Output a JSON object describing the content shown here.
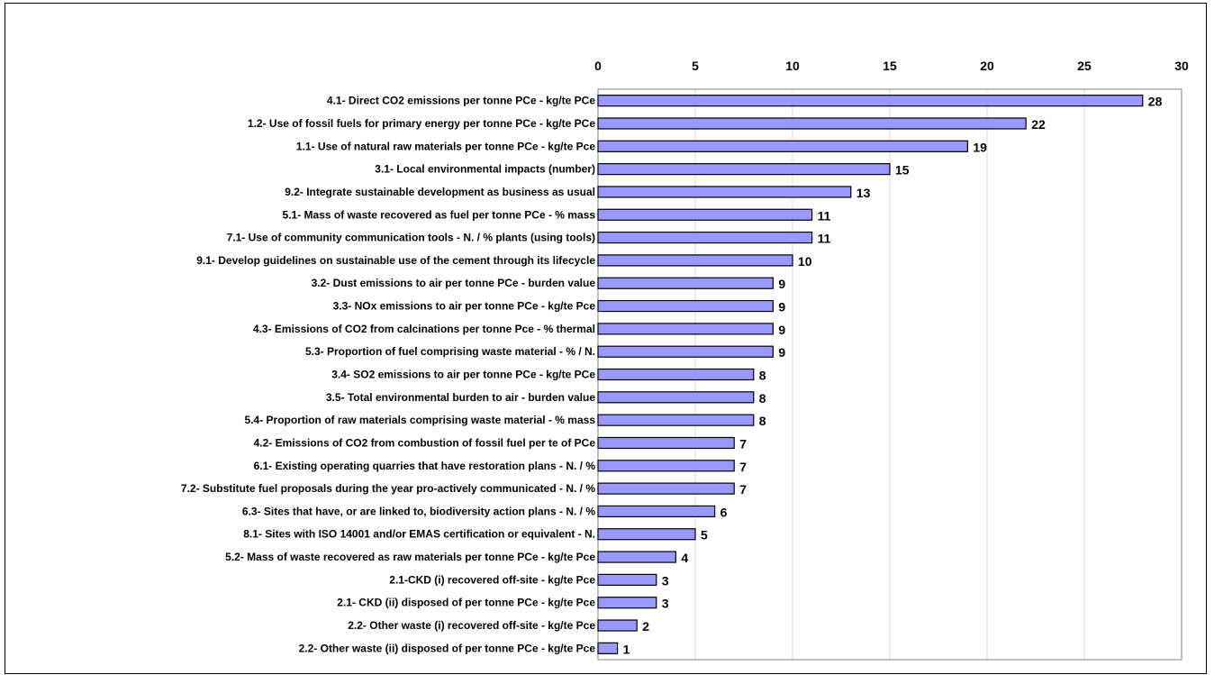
{
  "chart_data": {
    "type": "bar",
    "orientation": "horizontal",
    "title": "",
    "xlabel": "",
    "ylabel": "",
    "xlim": [
      0,
      30
    ],
    "x_ticks": [
      0,
      5,
      10,
      15,
      20,
      25,
      30
    ],
    "x_axis_position": "top",
    "grid": true,
    "bar_color": "#9999ff",
    "categories": [
      "4.1- Direct CO2 emissions per tonne PCe - kg/te PCe",
      "1.2- Use of fossil fuels for primary energy per tonne PCe - kg/te PCe",
      "1.1- Use of natural raw materials per tonne PCe - kg/te Pce",
      "3.1- Local environmental impacts (number)",
      "9.2- Integrate sustainable development as business as usual",
      "5.1- Mass of waste recovered as fuel per tonne PCe - % mass",
      "7.1- Use of community communication tools - N. / % plants (using tools)",
      "9.1- Develop guidelines on sustainable use of the cement through its lifecycle",
      "3.2- Dust emissions to air per tonne PCe - burden value",
      "3.3- NOx emissions to air per tonne PCe - kg/te Pce",
      "4.3- Emissions of CO2 from calcinations per tonne Pce - % thermal",
      "5.3- Proportion of fuel comprising waste material - % / N.",
      "3.4- SO2 emissions to air per tonne PCe - kg/te PCe",
      "3.5- Total environmental burden to air - burden value",
      "5.4- Proportion of raw materials comprising waste material - % mass",
      "4.2- Emissions of CO2 from combustion of fossil fuel per te of PCe",
      "6.1- Existing operating quarries that have restoration plans - N. / %",
      "7.2- Substitute fuel proposals during the year pro-actively communicated - N. / %",
      "6.3- Sites that have, or are linked to, biodiversity action plans - N. / %",
      "8.1- Sites with ISO 14001 and/or EMAS certification or equivalent - N.",
      "5.2- Mass of waste recovered as raw materials per tonne PCe - kg/te Pce",
      "2.1-CKD (i) recovered off-site - kg/te Pce",
      "2.1- CKD (ii) disposed of per tonne PCe - kg/te Pce",
      "2.2- Other waste (i) recovered off-site - kg/te Pce",
      "2.2- Other waste (ii) disposed of per tonne PCe - kg/te Pce"
    ],
    "values": [
      28,
      22,
      19,
      15,
      13,
      11,
      11,
      10,
      9,
      9,
      9,
      9,
      8,
      8,
      8,
      7,
      7,
      7,
      6,
      5,
      4,
      3,
      3,
      2,
      1
    ]
  }
}
